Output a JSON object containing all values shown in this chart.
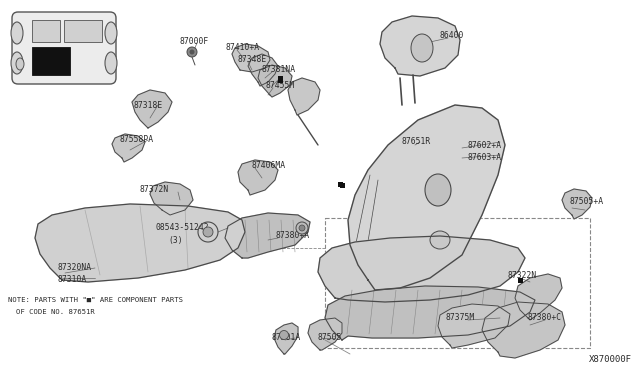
{
  "bg_color": "#ffffff",
  "line_color": "#4a4a4a",
  "text_color": "#2a2a2a",
  "fig_width": 6.4,
  "fig_height": 3.72,
  "dpi": 100,
  "diagram_code": "X870000F",
  "note_line1": "NOTE: PARTS WITH \"■\" ARE COMPONENT PARTS",
  "note_line2": "OF CODE NO. 87651R"
}
